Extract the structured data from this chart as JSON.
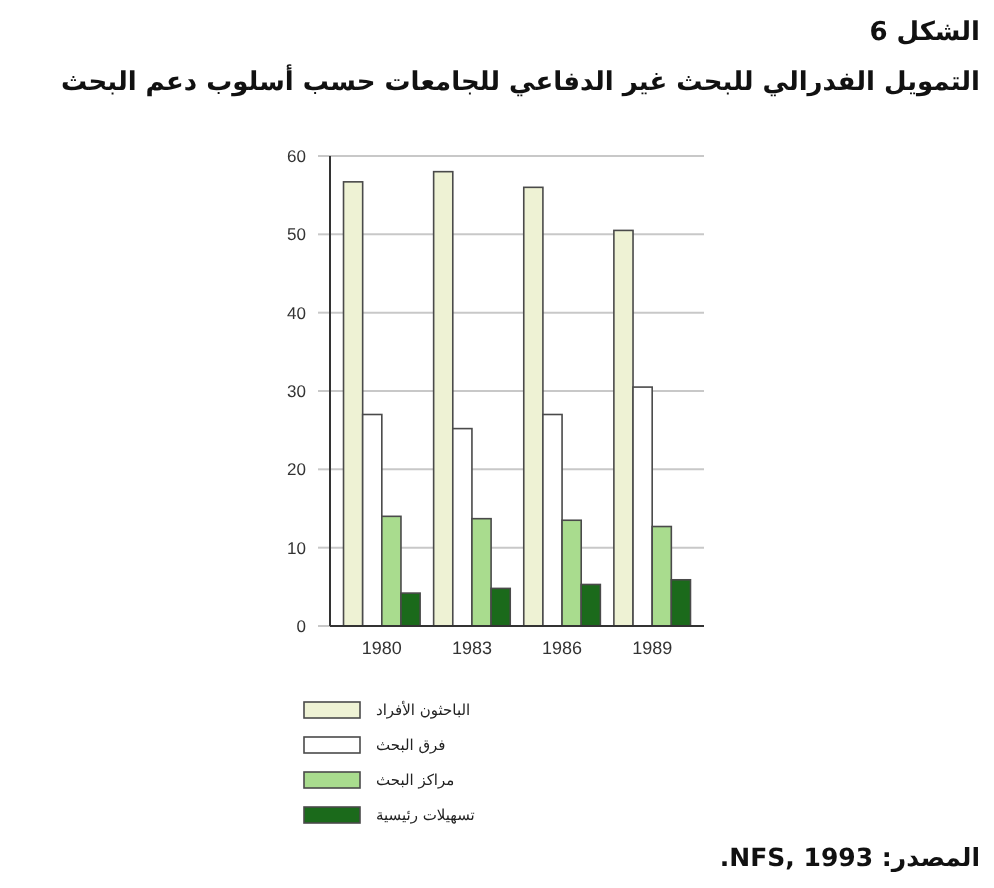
{
  "chart_data": {
    "type": "bar",
    "title": "الشكل 6",
    "subtitle": "التمويل الفدرالي للبحث غير الدفاعي للجامعات حسب أسلوب دعم البحث",
    "categories": [
      "1980",
      "1983",
      "1986",
      "1989"
    ],
    "series": [
      {
        "name": "الباحثون الأفراد",
        "color": "#eef2d4",
        "values": [
          56.7,
          58,
          56,
          50.5
        ]
      },
      {
        "name": "فرق البحث",
        "color": "#ffffff",
        "values": [
          27,
          25.2,
          27,
          30.5
        ]
      },
      {
        "name": "مراكز البحث",
        "color": "#a9dc8e",
        "values": [
          14,
          13.7,
          13.5,
          12.7
        ]
      },
      {
        "name": "تسهيلات رئيسية",
        "color": "#1b6a1b",
        "values": [
          4.2,
          4.8,
          5.3,
          5.9
        ]
      }
    ],
    "ylim": [
      0,
      60
    ],
    "yticks": [
      0,
      10,
      20,
      30,
      40,
      50,
      60
    ],
    "grid": "y",
    "legend": "bottom",
    "annotations": [
      "المصدر: NFS, 1993."
    ]
  }
}
